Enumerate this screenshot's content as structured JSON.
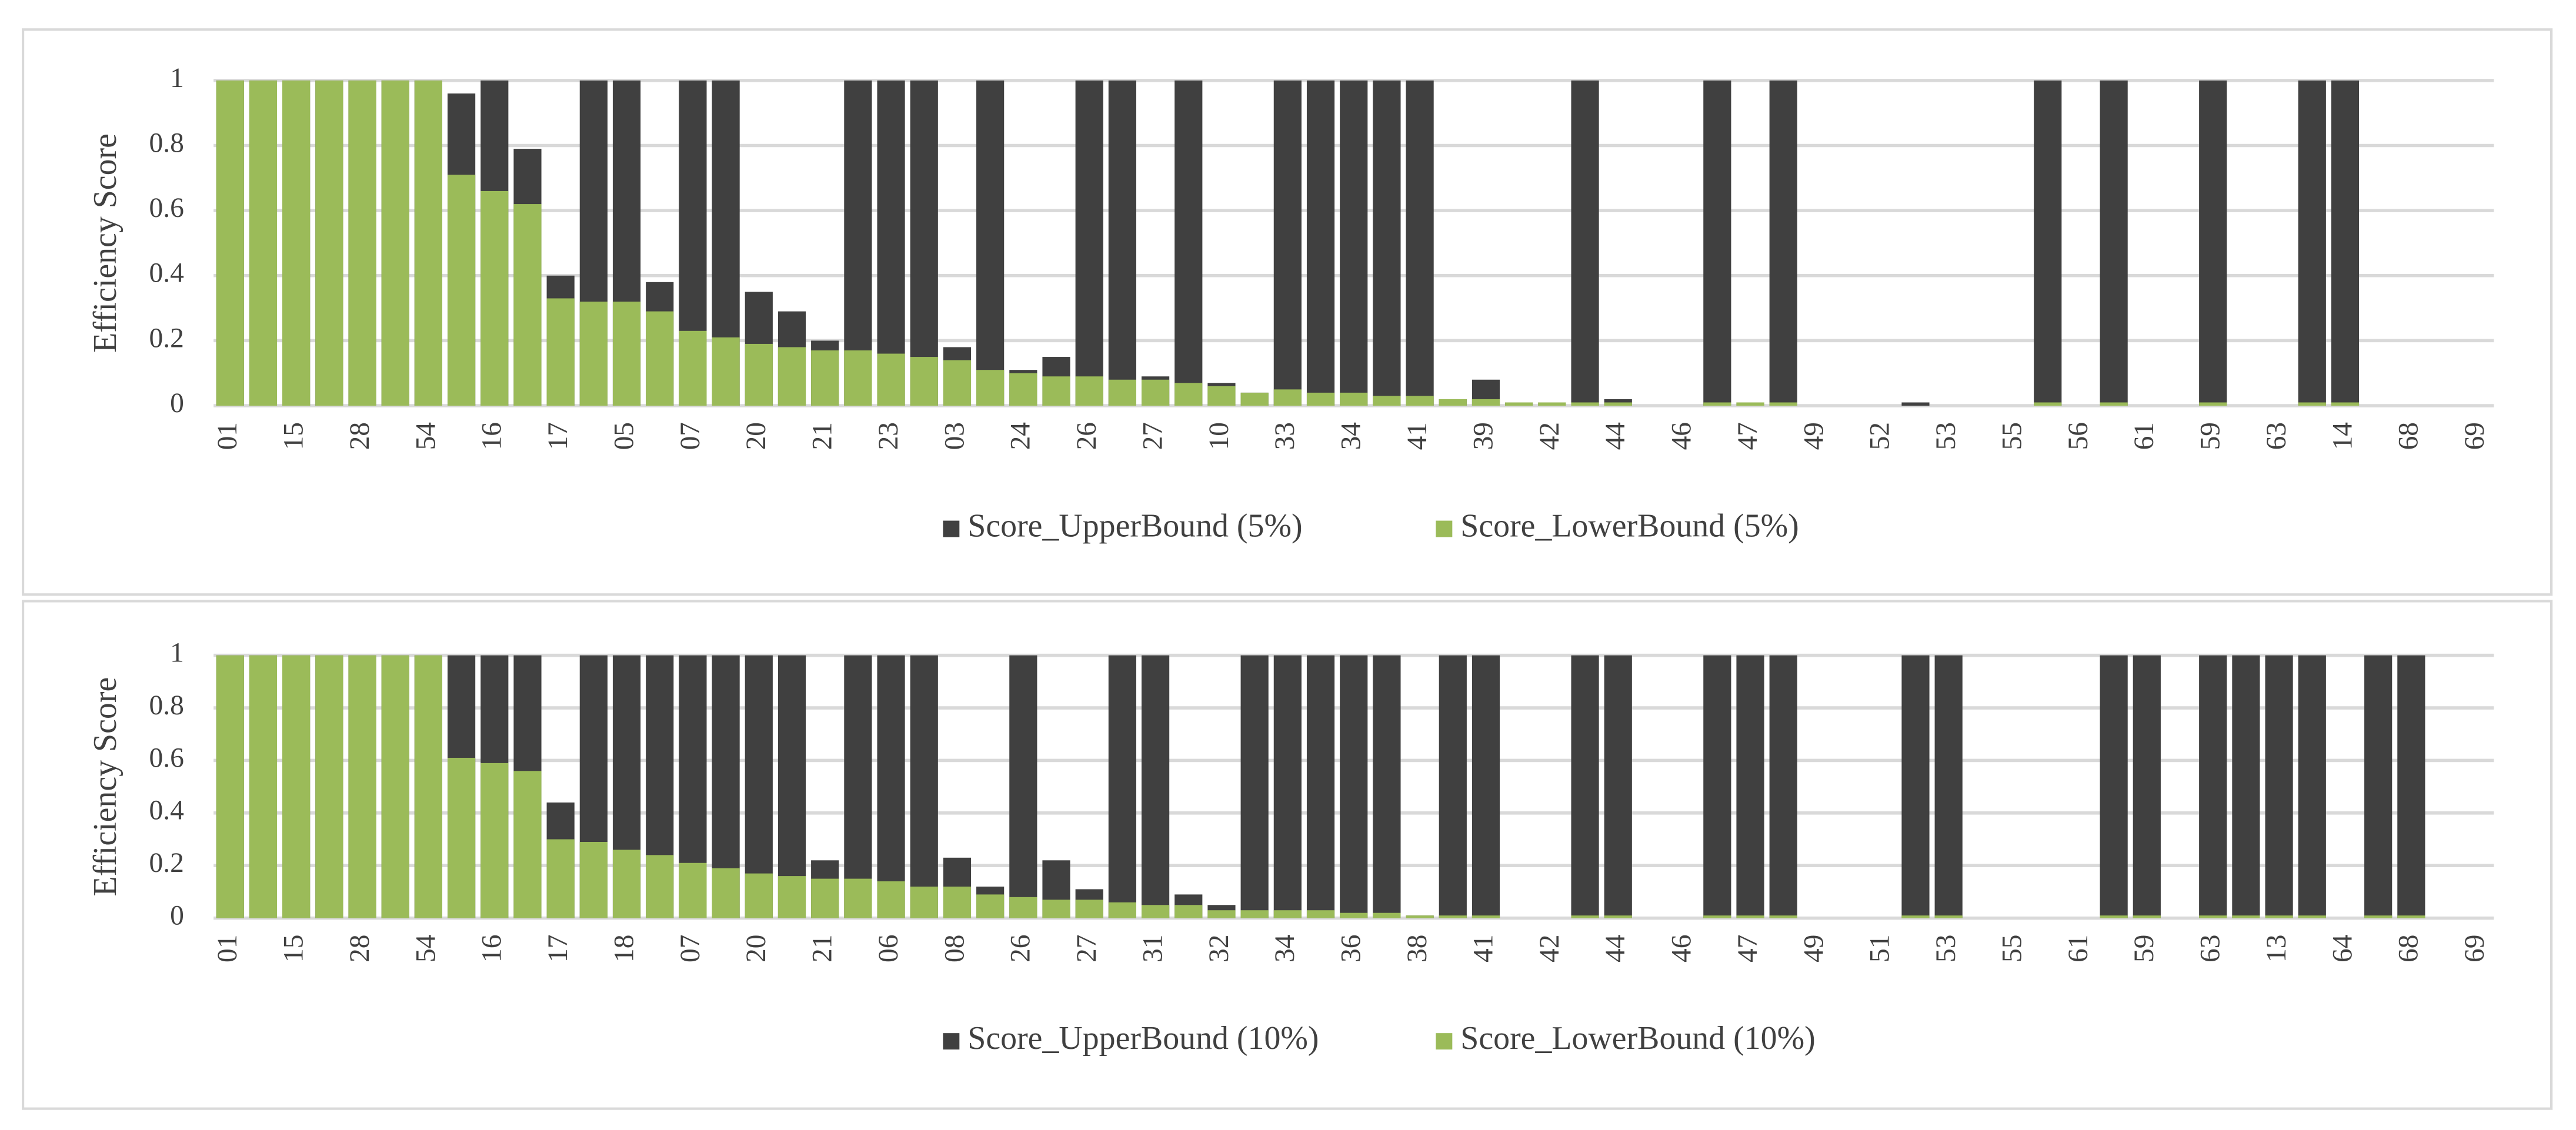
{
  "chart_data": [
    {
      "type": "bar",
      "y_label": "Efficiency Score",
      "ylim": [
        0,
        1
      ],
      "yticks": [
        0,
        0.2,
        0.4,
        0.6,
        0.8,
        1
      ],
      "grid": true,
      "legend": "bottom",
      "categories": [
        "01",
        null,
        "15",
        null,
        "28",
        null,
        "54",
        null,
        "16",
        null,
        "17",
        null,
        "05",
        null,
        "07",
        null,
        "20",
        null,
        "21",
        null,
        "23",
        null,
        "03",
        null,
        "24",
        null,
        "26",
        null,
        "27",
        null,
        "10",
        null,
        "33",
        null,
        "34",
        null,
        "41",
        null,
        "39",
        null,
        "42",
        null,
        "44",
        null,
        "46",
        null,
        "47",
        null,
        "49",
        null,
        "52",
        null,
        "53",
        null,
        "55",
        null,
        "56",
        null,
        "61",
        null,
        "59",
        null,
        "63",
        null,
        "14",
        null,
        "68",
        null,
        "69"
      ],
      "series": [
        {
          "name": "Score_UpperBound (5%)",
          "color": "#404040",
          "values": [
            1,
            1,
            1,
            1,
            1,
            1,
            1,
            0.96,
            1,
            0.79,
            0.4,
            1,
            1,
            0.38,
            1,
            1,
            0.35,
            0.29,
            0.2,
            1,
            1,
            1,
            0.18,
            1,
            0.11,
            0.15,
            1,
            1,
            0.09,
            1,
            0.07,
            0.04,
            1,
            1,
            1,
            1,
            1,
            0.02,
            0.08,
            0.01,
            0.01,
            1,
            0.02,
            0,
            0,
            1,
            0.01,
            1,
            0,
            0,
            0,
            0.01,
            0,
            0,
            0,
            1,
            0,
            1,
            0,
            0,
            1,
            0,
            0,
            1,
            1,
            0,
            0,
            0,
            0
          ]
        },
        {
          "name": "Score_LowerBound (5%)",
          "color": "#9bbb59",
          "values": [
            1,
            1,
            1,
            1,
            1,
            1,
            1,
            0.71,
            0.66,
            0.62,
            0.33,
            0.32,
            0.32,
            0.29,
            0.23,
            0.21,
            0.19,
            0.18,
            0.17,
            0.17,
            0.16,
            0.15,
            0.14,
            0.11,
            0.1,
            0.09,
            0.09,
            0.08,
            0.08,
            0.07,
            0.06,
            0.04,
            0.05,
            0.04,
            0.04,
            0.03,
            0.03,
            0.02,
            0.02,
            0.01,
            0.01,
            0.01,
            0.01,
            0,
            0,
            0.01,
            0.01,
            0.01,
            0,
            0,
            0,
            0,
            0,
            0,
            0,
            0.01,
            0,
            0.01,
            0,
            0,
            0.01,
            0,
            0,
            0.01,
            0.01,
            0,
            0,
            0,
            0
          ]
        }
      ]
    },
    {
      "type": "bar",
      "y_label": "Efficiency Score",
      "ylim": [
        0,
        1
      ],
      "yticks": [
        0,
        0.2,
        0.4,
        0.6,
        0.8,
        1
      ],
      "grid": true,
      "legend": "bottom",
      "categories": [
        "01",
        null,
        "15",
        null,
        "28",
        null,
        "54",
        null,
        "16",
        null,
        "17",
        null,
        "18",
        null,
        "07",
        null,
        "20",
        null,
        "21",
        null,
        "06",
        null,
        "08",
        null,
        "26",
        null,
        "27",
        null,
        "31",
        null,
        "32",
        null,
        "34",
        null,
        "36",
        null,
        "38",
        null,
        "41",
        null,
        "42",
        null,
        "44",
        null,
        "46",
        null,
        "47",
        null,
        "49",
        null,
        "51",
        null,
        "53",
        null,
        "55",
        null,
        "61",
        null,
        "59",
        null,
        "63",
        null,
        "13",
        null,
        "64",
        null,
        "68",
        null,
        "69"
      ],
      "series": [
        {
          "name": "Score_UpperBound (10%)",
          "color": "#404040",
          "values": [
            1,
            1,
            1,
            1,
            1,
            1,
            1,
            1,
            1,
            1,
            0.44,
            1,
            1,
            1,
            1,
            1,
            1,
            1,
            0.22,
            1,
            1,
            1,
            0.23,
            0.12,
            1,
            0.22,
            0.11,
            1,
            1,
            0.09,
            0.05,
            1,
            1,
            1,
            1,
            1,
            0.01,
            1,
            1,
            0,
            0,
            1,
            1,
            0,
            0,
            1,
            1,
            1,
            0,
            0,
            0,
            1,
            1,
            0,
            0,
            0,
            0,
            1,
            1,
            0,
            1,
            1,
            1,
            1,
            0,
            1,
            1,
            0,
            0
          ]
        },
        {
          "name": "Score_LowerBound (10%)",
          "color": "#9bbb59",
          "values": [
            1,
            1,
            1,
            1,
            1,
            1,
            1,
            0.61,
            0.59,
            0.56,
            0.3,
            0.29,
            0.26,
            0.24,
            0.21,
            0.19,
            0.17,
            0.16,
            0.15,
            0.15,
            0.14,
            0.12,
            0.12,
            0.09,
            0.08,
            0.07,
            0.07,
            0.06,
            0.05,
            0.05,
            0.03,
            0.03,
            0.03,
            0.03,
            0.02,
            0.02,
            0.01,
            0.01,
            0.01,
            0,
            0,
            0.01,
            0.01,
            0,
            0,
            0.01,
            0.01,
            0.01,
            0,
            0,
            0,
            0.01,
            0.01,
            0,
            0,
            0,
            0,
            0.01,
            0.01,
            0,
            0.01,
            0.01,
            0.01,
            0.01,
            0,
            0.01,
            0.01,
            0,
            0
          ]
        }
      ]
    }
  ]
}
